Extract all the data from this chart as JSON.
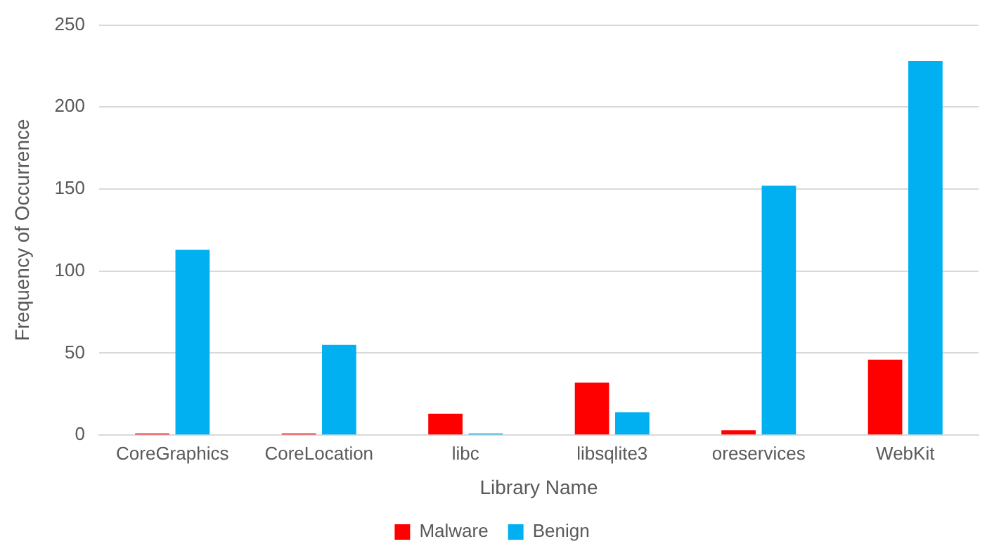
{
  "chart_data": {
    "type": "bar",
    "xlabel": "Library Name",
    "ylabel": "Frequency of Occurrence",
    "categories": [
      "CoreGraphics",
      "CoreLocation",
      "libc",
      "libsqlite3",
      "oreservices",
      "WebKit"
    ],
    "series": [
      {
        "name": "Malware",
        "color": "#ff0000",
        "values": [
          1,
          1,
          13,
          32,
          3,
          46
        ]
      },
      {
        "name": "Benign",
        "color": "#00b0f0",
        "values": [
          113,
          55,
          1,
          14,
          152,
          228
        ]
      }
    ],
    "ylim": [
      0,
      250
    ],
    "yticks": [
      0,
      50,
      100,
      150,
      200,
      250
    ],
    "grid": "y",
    "legend": "bottom"
  }
}
